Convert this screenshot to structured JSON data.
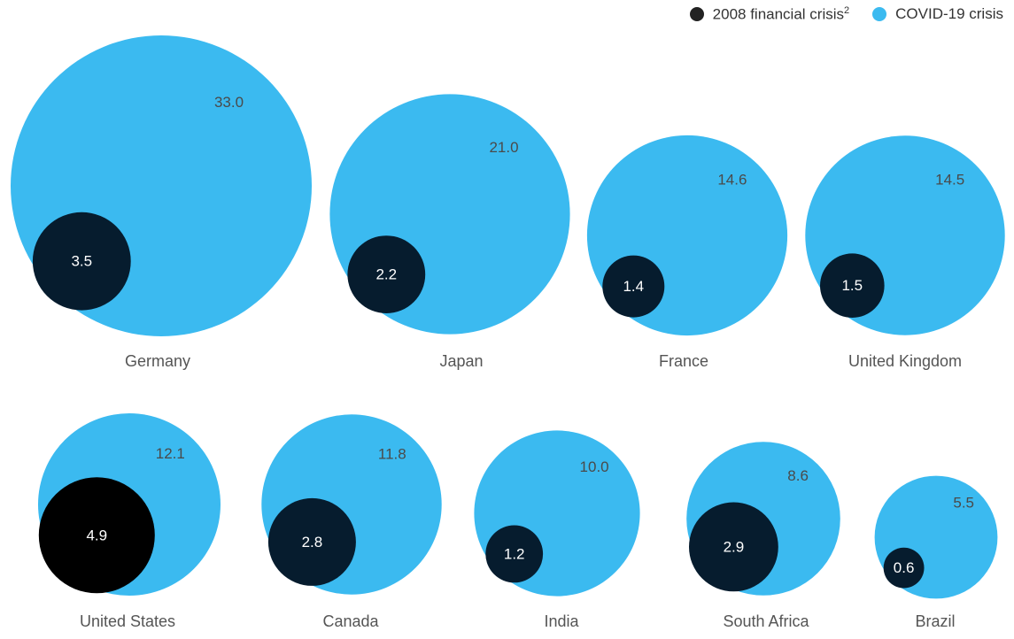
{
  "colors": {
    "covid": "#3bbaf0",
    "crisis2008": "#061c2e",
    "crisis2008_legend": "#222222",
    "label_on_light": "#4a4a4a",
    "label_on_dark": "#ffffff",
    "country_label": "#555555"
  },
  "legend": {
    "position": "top-right",
    "items": [
      {
        "key": "crisis2008",
        "label": "2008 financial crisis",
        "footnote": "2"
      },
      {
        "key": "covid",
        "label": "COVID-19 crisis"
      }
    ]
  },
  "chart_data": {
    "type": "bubble",
    "series": [
      {
        "key": "crisis2008",
        "name": "2008 financial crisis"
      },
      {
        "key": "covid",
        "name": "COVID-19 crisis"
      }
    ],
    "countries": [
      {
        "name": "Germany",
        "covid": 33.0,
        "crisis2008": 3.5,
        "covid_label": "33.0",
        "crisis2008_label": "3.5"
      },
      {
        "name": "Japan",
        "covid": 21.0,
        "crisis2008": 2.2,
        "covid_label": "21.0",
        "crisis2008_label": "2.2"
      },
      {
        "name": "France",
        "covid": 14.6,
        "crisis2008": 1.4,
        "covid_label": "14.6",
        "crisis2008_label": "1.4"
      },
      {
        "name": "United Kingdom",
        "covid": 14.5,
        "crisis2008": 1.5,
        "covid_label": "14.5",
        "crisis2008_label": "1.5"
      },
      {
        "name": "United States",
        "covid": 12.1,
        "crisis2008": 4.9,
        "covid_label": "12.1",
        "crisis2008_label": "4.9"
      },
      {
        "name": "Canada",
        "covid": 11.8,
        "crisis2008": 2.8,
        "covid_label": "11.8",
        "crisis2008_label": "2.8"
      },
      {
        "name": "India",
        "covid": 10.0,
        "crisis2008": 1.2,
        "covid_label": "10.0",
        "crisis2008_label": "1.2"
      },
      {
        "name": "South Africa",
        "covid": 8.6,
        "crisis2008": 2.9,
        "covid_label": "8.6",
        "crisis2008_label": "2.9"
      },
      {
        "name": "Brazil",
        "covid": 5.5,
        "crisis2008": 0.6,
        "covid_label": "5.5",
        "crisis2008_label": "0.6"
      }
    ]
  }
}
